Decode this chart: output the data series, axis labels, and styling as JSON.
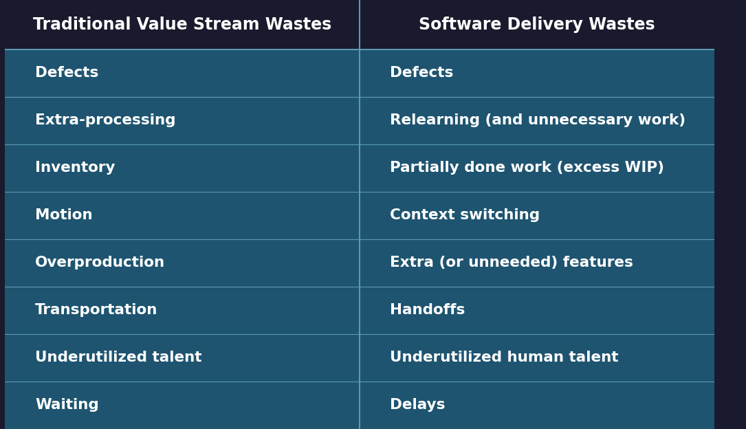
{
  "header": [
    "Traditional Value Stream Wastes",
    "Software Delivery Wastes"
  ],
  "rows": [
    [
      "Defects",
      "Defects"
    ],
    [
      "Extra-processing",
      "Relearning (and unnecessary work)"
    ],
    [
      "Inventory",
      "Partially done work (excess WIP)"
    ],
    [
      "Motion",
      "Context switching"
    ],
    [
      "Overproduction",
      "Extra (or unneeded) features"
    ],
    [
      "Transportation",
      "Handoffs"
    ],
    [
      "Underutilized talent",
      "Underutilized human talent"
    ],
    [
      "Waiting",
      "Delays"
    ]
  ],
  "header_bg": "#1a1a2e",
  "cell_bg": "#1e5470",
  "divider_color": "#5a9ab5",
  "text_color": "#ffffff",
  "header_fontsize": 17,
  "cell_fontsize": 15.5,
  "fig_width": 10.85,
  "fig_height": 6.24
}
